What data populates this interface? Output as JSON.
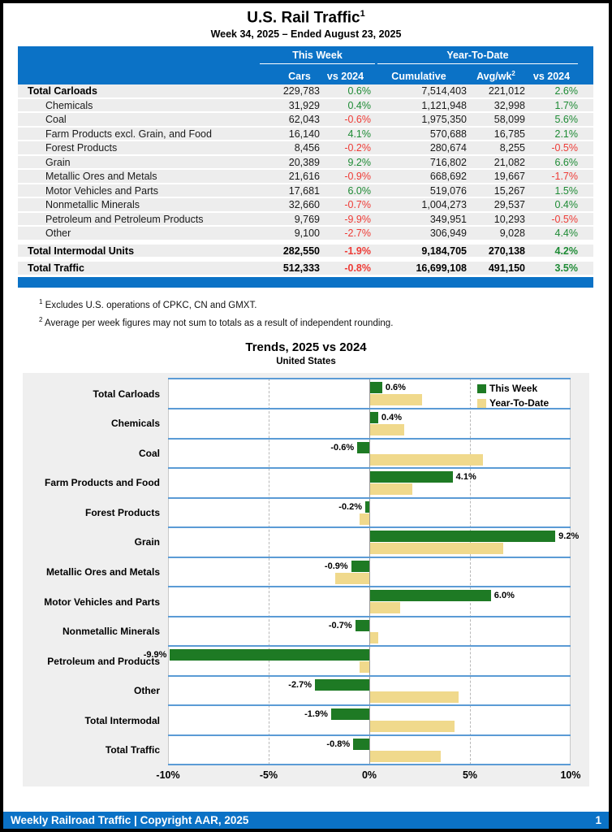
{
  "page": {
    "title": "U.S. Rail Traffic",
    "title_sup": "1",
    "subtitle": "Week 34, 2025 – Ended August 23, 2025"
  },
  "table": {
    "group_headers": {
      "this_week": "This Week",
      "ytd": "Year-To-Date"
    },
    "col_headers": {
      "cars": "Cars",
      "tw_vs": "vs 2024",
      "cumulative": "Cumulative",
      "avg_wk": "Avg/wk",
      "avg_wk_sup": "2",
      "ytd_vs": "vs 2024"
    },
    "rows": [
      {
        "label": "Total Carloads",
        "style": "lead",
        "cars": "229,783",
        "tw_vs": "0.6%",
        "cumulative": "7,514,403",
        "avg": "221,012",
        "ytd_vs": "2.6%"
      },
      {
        "label": "Chemicals",
        "style": "sub",
        "cars": "31,929",
        "tw_vs": "0.4%",
        "cumulative": "1,121,948",
        "avg": "32,998",
        "ytd_vs": "1.7%"
      },
      {
        "label": "Coal",
        "style": "sub",
        "cars": "62,043",
        "tw_vs": "-0.6%",
        "cumulative": "1,975,350",
        "avg": "58,099",
        "ytd_vs": "5.6%"
      },
      {
        "label": "Farm Products excl. Grain, and Food",
        "style": "sub",
        "cars": "16,140",
        "tw_vs": "4.1%",
        "cumulative": "570,688",
        "avg": "16,785",
        "ytd_vs": "2.1%"
      },
      {
        "label": "Forest Products",
        "style": "sub",
        "cars": "8,456",
        "tw_vs": "-0.2%",
        "cumulative": "280,674",
        "avg": "8,255",
        "ytd_vs": "-0.5%"
      },
      {
        "label": "Grain",
        "style": "sub",
        "cars": "20,389",
        "tw_vs": "9.2%",
        "cumulative": "716,802",
        "avg": "21,082",
        "ytd_vs": "6.6%"
      },
      {
        "label": "Metallic Ores and Metals",
        "style": "sub",
        "cars": "21,616",
        "tw_vs": "-0.9%",
        "cumulative": "668,692",
        "avg": "19,667",
        "ytd_vs": "-1.7%"
      },
      {
        "label": "Motor Vehicles and Parts",
        "style": "sub",
        "cars": "17,681",
        "tw_vs": "6.0%",
        "cumulative": "519,076",
        "avg": "15,267",
        "ytd_vs": "1.5%"
      },
      {
        "label": "Nonmetallic Minerals",
        "style": "sub",
        "cars": "32,660",
        "tw_vs": "-0.7%",
        "cumulative": "1,004,273",
        "avg": "29,537",
        "ytd_vs": "0.4%"
      },
      {
        "label": "Petroleum and Petroleum Products",
        "style": "sub",
        "cars": "9,769",
        "tw_vs": "-9.9%",
        "cumulative": "349,951",
        "avg": "10,293",
        "ytd_vs": "-0.5%"
      },
      {
        "label": "Other",
        "style": "sub",
        "cars": "9,100",
        "tw_vs": "-2.7%",
        "cumulative": "306,949",
        "avg": "9,028",
        "ytd_vs": "4.4%"
      },
      {
        "label": "Total Intermodal Units",
        "style": "total",
        "cars": "282,550",
        "tw_vs": "-1.9%",
        "cumulative": "9,184,705",
        "avg": "270,138",
        "ytd_vs": "4.2%"
      },
      {
        "label": "Total Traffic",
        "style": "total",
        "cars": "512,333",
        "tw_vs": "-0.8%",
        "cumulative": "16,699,108",
        "avg": "491,150",
        "ytd_vs": "3.5%"
      }
    ]
  },
  "footnotes": [
    {
      "sup": "1",
      "text": "Excludes U.S. operations of CPKC, CN and GMXT."
    },
    {
      "sup": "2",
      "text": "Average per week figures may not sum to totals as a result of independent rounding."
    }
  ],
  "chart": {
    "title": "Trends, 2025 vs 2024",
    "subtitle": "United States"
  },
  "chart_data": {
    "type": "bar",
    "orientation": "horizontal",
    "title": "Trends, 2025 vs 2024",
    "subtitle": "United States",
    "categories": [
      "Total Carloads",
      "Chemicals",
      "Coal",
      "Farm Products and Food",
      "Forest Products",
      "Grain",
      "Metallic Ores and Metals",
      "Motor Vehicles and Parts",
      "Nonmetallic Minerals",
      "Petroleum and Products",
      "Other",
      "Total Intermodal",
      "Total Traffic"
    ],
    "series": [
      {
        "name": "This Week",
        "values": [
          0.6,
          0.4,
          -0.6,
          4.1,
          -0.2,
          9.2,
          -0.9,
          6.0,
          -0.7,
          -9.9,
          -2.7,
          -1.9,
          -0.8
        ]
      },
      {
        "name": "Year-To-Date",
        "values": [
          2.6,
          1.7,
          5.6,
          2.1,
          -0.5,
          6.6,
          -1.7,
          1.5,
          0.4,
          -0.5,
          4.4,
          4.2,
          3.5
        ]
      }
    ],
    "bar_labels": [
      "0.6%",
      "0.4%",
      "-0.6%",
      "4.1%",
      "-0.2%",
      "9.2%",
      "-0.9%",
      "6.0%",
      "-0.7%",
      "-9.9%",
      "-2.7%",
      "-1.9%",
      "-0.8%"
    ],
    "xlim": [
      -10,
      10
    ],
    "x_ticks": [
      -10,
      -5,
      0,
      5,
      10
    ],
    "x_tick_labels": [
      "-10%",
      "-5%",
      "0%",
      "5%",
      "10%"
    ],
    "grid": "dashed vertical at ±5%",
    "legend_position": "top-right"
  },
  "footer": {
    "text": "Weekly Railroad Traffic | Copyright AAR, 2025",
    "page_number": "1"
  },
  "colors": {
    "header_blue": "#0b72c6",
    "positive_green": "#1e8b35",
    "negative_red": "#ee3b36",
    "bar_green": "#1e7a24",
    "bar_tan": "#f0d98c",
    "separator_blue": "#5b9bd5",
    "row_gray": "#ededed",
    "chart_bg": "#efefef"
  }
}
